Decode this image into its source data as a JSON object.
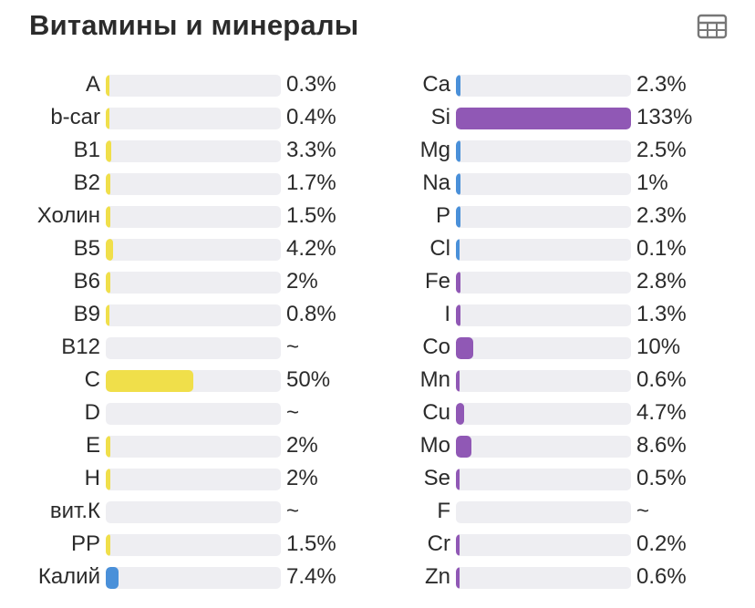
{
  "header": {
    "title": "Витамины и минералы",
    "table_icon": "table-icon"
  },
  "colors": {
    "yellow": "#f0df4a",
    "blue": "#4a90d9",
    "purple": "#9058b5",
    "track": "#eeeef2"
  },
  "vitamins": [
    {
      "label": "A",
      "value": "0.3%",
      "fill": 0.003,
      "color": "yellow"
    },
    {
      "label": "b-car",
      "value": "0.4%",
      "fill": 0.004,
      "color": "yellow"
    },
    {
      "label": "B1",
      "value": "3.3%",
      "fill": 0.033,
      "color": "yellow"
    },
    {
      "label": "B2",
      "value": "1.7%",
      "fill": 0.017,
      "color": "yellow"
    },
    {
      "label": "Холин",
      "value": "1.5%",
      "fill": 0.015,
      "color": "yellow"
    },
    {
      "label": "B5",
      "value": "4.2%",
      "fill": 0.042,
      "color": "yellow"
    },
    {
      "label": "B6",
      "value": "2%",
      "fill": 0.02,
      "color": "yellow"
    },
    {
      "label": "B9",
      "value": "0.8%",
      "fill": 0.008,
      "color": "yellow"
    },
    {
      "label": "B12",
      "value": "~",
      "fill": 0,
      "color": "yellow"
    },
    {
      "label": "C",
      "value": "50%",
      "fill": 0.5,
      "color": "yellow"
    },
    {
      "label": "D",
      "value": "~",
      "fill": 0,
      "color": "yellow"
    },
    {
      "label": "E",
      "value": "2%",
      "fill": 0.02,
      "color": "yellow"
    },
    {
      "label": "H",
      "value": "2%",
      "fill": 0.02,
      "color": "yellow"
    },
    {
      "label": "вит.К",
      "value": "~",
      "fill": 0,
      "color": "yellow"
    },
    {
      "label": "PP",
      "value": "1.5%",
      "fill": 0.015,
      "color": "yellow"
    },
    {
      "label": "Калий",
      "value": "7.4%",
      "fill": 0.074,
      "color": "blue"
    }
  ],
  "minerals": [
    {
      "label": "Ca",
      "value": "2.3%",
      "fill": 0.023,
      "color": "blue"
    },
    {
      "label": "Si",
      "value": "133%",
      "fill": 1.0,
      "color": "purple"
    },
    {
      "label": "Mg",
      "value": "2.5%",
      "fill": 0.025,
      "color": "blue"
    },
    {
      "label": "Na",
      "value": "1%",
      "fill": 0.01,
      "color": "blue"
    },
    {
      "label": "P",
      "value": "2.3%",
      "fill": 0.023,
      "color": "blue"
    },
    {
      "label": "Cl",
      "value": "0.1%",
      "fill": 0.001,
      "color": "blue"
    },
    {
      "label": "Fe",
      "value": "2.8%",
      "fill": 0.028,
      "color": "purple"
    },
    {
      "label": "I",
      "value": "1.3%",
      "fill": 0.013,
      "color": "purple"
    },
    {
      "label": "Co",
      "value": "10%",
      "fill": 0.1,
      "color": "purple"
    },
    {
      "label": "Mn",
      "value": "0.6%",
      "fill": 0.006,
      "color": "purple"
    },
    {
      "label": "Cu",
      "value": "4.7%",
      "fill": 0.047,
      "color": "purple"
    },
    {
      "label": "Mo",
      "value": "8.6%",
      "fill": 0.086,
      "color": "purple"
    },
    {
      "label": "Se",
      "value": "0.5%",
      "fill": 0.005,
      "color": "purple"
    },
    {
      "label": "F",
      "value": "~",
      "fill": 0,
      "color": "purple"
    },
    {
      "label": "Cr",
      "value": "0.2%",
      "fill": 0.002,
      "color": "purple"
    },
    {
      "label": "Zn",
      "value": "0.6%",
      "fill": 0.006,
      "color": "purple"
    }
  ]
}
